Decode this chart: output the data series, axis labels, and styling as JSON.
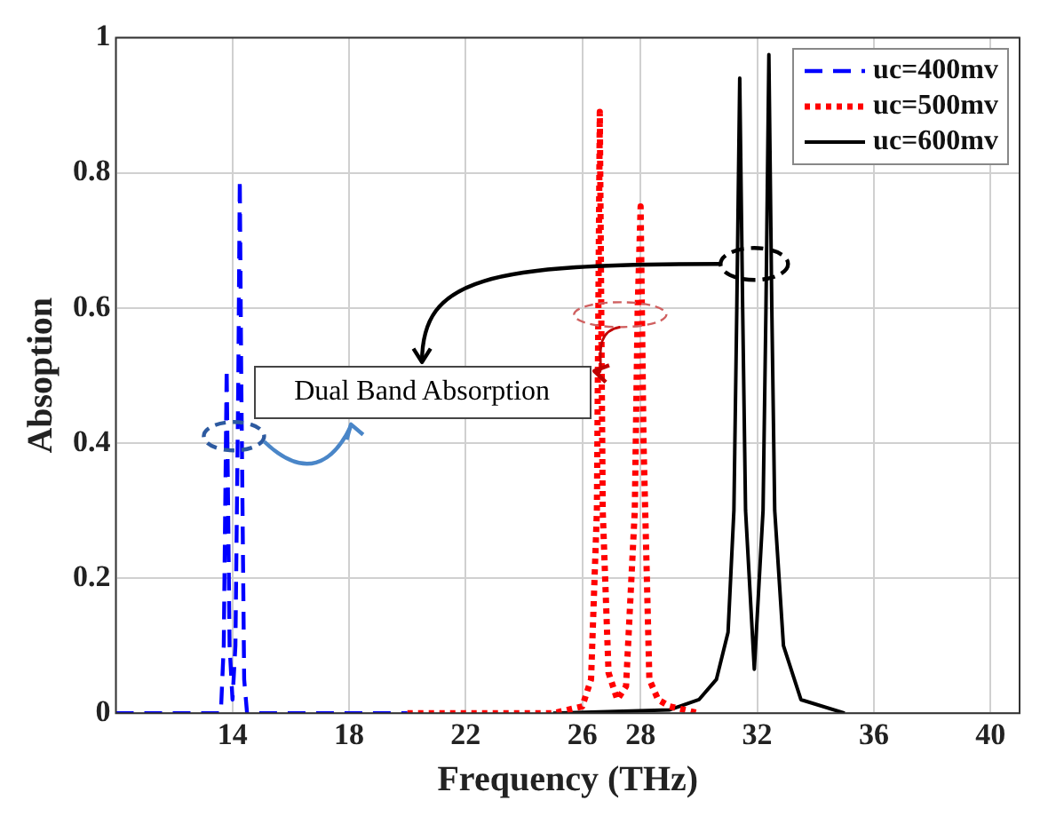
{
  "chart_data": {
    "type": "line",
    "xlabel": "Frequency (THz)",
    "ylabel": "Absoption",
    "xlim": [
      10,
      41
    ],
    "xticks": [
      14,
      18,
      22,
      26,
      28,
      32,
      36,
      40
    ],
    "ylim": [
      0,
      1
    ],
    "yticks": [
      0,
      0.2,
      0.4,
      0.6,
      0.8,
      1
    ],
    "grid": true,
    "legend": "top right",
    "annotations": [
      "Dual Band Absorption"
    ],
    "series": [
      {
        "name": "uc=400mv",
        "color": "#0000ff",
        "line_style": "dashed",
        "x": [
          10,
          13.6,
          13.7,
          13.8,
          13.9,
          14.0,
          14.1,
          14.2,
          14.25,
          14.3,
          14.4,
          14.5,
          20
        ],
        "values": [
          0,
          0,
          0.1,
          0.51,
          0.1,
          0.02,
          0.1,
          0.5,
          0.79,
          0.5,
          0.05,
          0,
          0
        ]
      },
      {
        "name": "uc=500mv",
        "color": "#ff0000",
        "line_style": "dotted",
        "x": [
          20,
          25,
          26,
          26.3,
          26.5,
          26.6,
          26.7,
          26.9,
          27.2,
          27.5,
          27.8,
          27.9,
          28,
          28.1,
          28.3,
          28.6,
          29,
          30
        ],
        "values": [
          0,
          0,
          0.01,
          0.05,
          0.3,
          0.89,
          0.3,
          0.06,
          0.02,
          0.04,
          0.3,
          0.6,
          0.75,
          0.4,
          0.05,
          0.02,
          0.01,
          0
        ]
      },
      {
        "name": "uc=600mv",
        "color": "#000000",
        "line_style": "solid",
        "x": [
          25,
          29,
          30,
          30.6,
          31,
          31.2,
          31.3,
          31.4,
          31.5,
          31.6,
          31.9,
          32.2,
          32.3,
          32.4,
          32.5,
          32.6,
          32.9,
          33.5,
          35
        ],
        "values": [
          0,
          0.005,
          0.02,
          0.05,
          0.12,
          0.3,
          0.6,
          0.94,
          0.6,
          0.3,
          0.065,
          0.3,
          0.6,
          0.975,
          0.6,
          0.3,
          0.1,
          0.02,
          0
        ]
      }
    ]
  }
}
